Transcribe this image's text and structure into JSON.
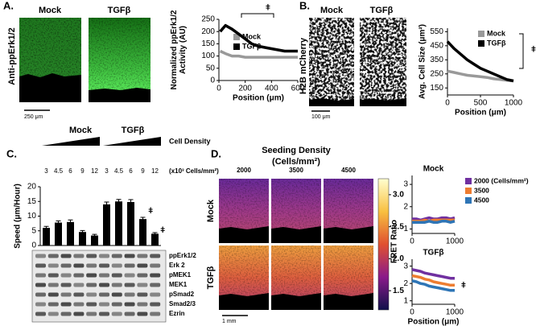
{
  "figure": {
    "panel_a": {
      "letter": "A.",
      "columns": [
        "Mock",
        "TGFβ"
      ],
      "row_label": "Anti-ppErk1/2",
      "scale_bar": "250 μm"
    },
    "panel_b": {
      "letter": "B.",
      "columns": [
        "Mock",
        "TGFβ"
      ],
      "row_label": "H2B mCherry",
      "scale_bar": "100 μm"
    },
    "panel_c": {
      "letter": "C.",
      "groups": [
        "Mock",
        "TGFβ"
      ],
      "density_label": "Cell Density",
      "density_unit": "(x10³ Cells/mm²)",
      "blots": [
        "ppErk1/2",
        "Erk 2",
        "pMEK1",
        "MEK1",
        "pSmad2",
        "Smad2/3",
        "Ezrin"
      ]
    },
    "panel_d": {
      "letter": "D.",
      "title": "Seeding Density",
      "title_unit": "(Cells/mm²)",
      "columns": [
        "2000",
        "3500",
        "4500"
      ],
      "rows": [
        "Mock",
        "TGFβ"
      ],
      "scale_bar": "1 mm",
      "colorbar": {
        "lim": [
          1.2,
          3.25
        ],
        "ticks": [
          {
            "value": 3,
            "label": "3.0"
          },
          {
            "value": 2.5,
            "label": "2.5"
          },
          {
            "value": 2,
            "label": "2.0"
          },
          {
            "value": 1.5,
            "label": "1.5"
          }
        ]
      }
    }
  },
  "chart_data": [
    {
      "type": "line",
      "y_label": [
        "Normalized ppErk1/2",
        "Activity (AU)"
      ],
      "x_label": "Position (μm)",
      "annotation": "ǂ",
      "x": [
        10,
        50,
        100,
        150,
        200,
        250,
        300,
        350,
        400,
        450,
        500,
        550,
        600
      ],
      "series": [
        {
          "name": "Mock",
          "color": "#999999",
          "values": [
            120,
            110,
            100,
            100,
            95,
            95,
            95,
            95,
            95,
            95,
            95,
            95,
            95
          ]
        },
        {
          "name": "TGFβ",
          "color": "#000000",
          "values": [
            200,
            225,
            210,
            190,
            170,
            150,
            140,
            135,
            130,
            125,
            120,
            120,
            120
          ]
        }
      ],
      "xlim": [
        0,
        600
      ],
      "xticks": [
        0,
        200,
        400,
        600
      ],
      "ylim": [
        0,
        250
      ],
      "yticks": [
        0,
        50,
        100,
        150,
        200,
        250
      ]
    },
    {
      "type": "line",
      "y_label": [
        "Avg. Cell Size (μm²)"
      ],
      "x_label": "Position (μm)",
      "annotation": "ǂ",
      "x": [
        0,
        100,
        200,
        300,
        400,
        500,
        600,
        700,
        800,
        900,
        1000
      ],
      "series": [
        {
          "name": "Mock",
          "color": "#999999",
          "values": [
            270,
            260,
            250,
            240,
            235,
            230,
            225,
            215,
            210,
            205,
            200
          ]
        },
        {
          "name": "TGFβ",
          "color": "#000000",
          "values": [
            480,
            430,
            390,
            350,
            320,
            290,
            270,
            250,
            230,
            210,
            200
          ]
        }
      ],
      "xlim": [
        0,
        1000
      ],
      "xticks": [
        0,
        500,
        1000
      ],
      "ylim": [
        100,
        575
      ],
      "yticks": [
        150,
        250,
        350,
        450,
        550
      ]
    },
    {
      "type": "bar",
      "y_label": [
        "Speed (μm/Hour)"
      ],
      "annotation": "ǂ",
      "color": "#000000",
      "categories": [
        "3",
        "4.5",
        "6",
        "9",
        "12",
        "3",
        "4.5",
        "6",
        "9",
        "12"
      ],
      "values": [
        6,
        7.8,
        8,
        4.6,
        3.4,
        14,
        15,
        14.8,
        9,
        4
      ],
      "errors": [
        0.5,
        0.6,
        0.7,
        0.5,
        0.4,
        0.8,
        0.7,
        0.8,
        0.6,
        0.4
      ],
      "ylim": [
        0,
        20
      ],
      "yticks": [
        0,
        5,
        10,
        15,
        20
      ]
    },
    {
      "type": "line",
      "title": "Mock",
      "x": [
        0,
        100,
        200,
        300,
        400,
        500,
        600,
        700,
        800,
        900,
        1000
      ],
      "series": [
        {
          "name": "2000 (Cells/mm²)",
          "color": "#7030a0",
          "values": [
            1.45,
            1.45,
            1.4,
            1.45,
            1.5,
            1.45,
            1.45,
            1.5,
            1.5,
            1.45,
            1.5
          ]
        },
        {
          "name": "3500",
          "color": "#ed7d31",
          "values": [
            1.35,
            1.35,
            1.35,
            1.4,
            1.35,
            1.4,
            1.4,
            1.4,
            1.4,
            1.4,
            1.4
          ]
        },
        {
          "name": "4500",
          "color": "#2e75b6",
          "values": [
            1.3,
            1.3,
            1.3,
            1.3,
            1.35,
            1.3,
            1.3,
            1.35,
            1.35,
            1.3,
            1.35
          ]
        }
      ],
      "xlim": [
        0,
        1000
      ],
      "xticks": [
        0,
        1000
      ],
      "ylim": [
        0.8,
        3.4
      ],
      "yticks": [
        1,
        2,
        3
      ]
    },
    {
      "type": "line",
      "title": "TGFβ",
      "y_label": [
        "FRET Ratio"
      ],
      "x_label": "Position (μm)",
      "annotation": "ǂ",
      "x": [
        0,
        100,
        200,
        300,
        400,
        500,
        600,
        700,
        800,
        900,
        1000
      ],
      "series": [
        {
          "color": "#7030a0",
          "values": [
            2.8,
            2.75,
            2.7,
            2.6,
            2.55,
            2.5,
            2.45,
            2.4,
            2.35,
            2.3,
            2.3
          ]
        },
        {
          "color": "#ed7d31",
          "values": [
            2.45,
            2.4,
            2.35,
            2.25,
            2.2,
            2.1,
            2.05,
            2.0,
            1.95,
            1.9,
            1.9
          ]
        },
        {
          "color": "#2e75b6",
          "values": [
            2.15,
            2.1,
            2.0,
            1.95,
            1.85,
            1.8,
            1.75,
            1.7,
            1.65,
            1.6,
            1.6
          ]
        }
      ],
      "xlim": [
        0,
        1000
      ],
      "xticks": [
        0,
        1000
      ],
      "ylim": [
        0.8,
        3.4
      ],
      "yticks": [
        1,
        2,
        3
      ]
    }
  ]
}
